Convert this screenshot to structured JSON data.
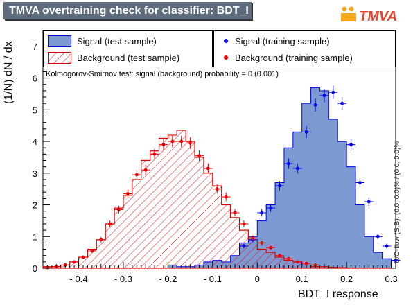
{
  "title": "TMVA overtraining check for classifier: BDT_I",
  "logo_text": "TMVA",
  "colors": {
    "signal_fill": "#7d99d1",
    "signal_line": "#0000ee",
    "background_hatch": "#ff0000",
    "background_line": "#dd0000",
    "title_bar": "#5d6b7d"
  },
  "legend": {
    "test": [
      {
        "label": "Signal (test sample)",
        "style": "filled-blue"
      },
      {
        "label": "Background (test sample)",
        "style": "hatched-red"
      }
    ],
    "training": [
      {
        "label": "Signal (training sample)",
        "style": "blue-marker"
      },
      {
        "label": "Background (training sample)",
        "style": "red-marker"
      }
    ]
  },
  "ks_text": "Kolmogorov-Smirnov test: signal (background) probability =     0 (0.001)",
  "overflow_text": "U/O-flow (S,B): (0.0, 0.0)% / (0.0, 0.0)%",
  "chart_data": {
    "type": "histogram",
    "xlabel": "BDT_I response",
    "ylabel": "(1/N) dN / dx",
    "xlim": [
      -0.48,
      0.31
    ],
    "ylim": [
      0,
      7.5
    ],
    "x_ticks": [
      -0.4,
      -0.3,
      -0.2,
      -0.1,
      0,
      0.1,
      0.2,
      0.3
    ],
    "x_tick_labels": [
      "- 0.4",
      "- 0.3",
      "- 0.2",
      "- 0.1",
      "0",
      "0.1",
      "0.2",
      "0.3"
    ],
    "y_ticks": [
      0,
      1,
      2,
      3,
      4,
      5,
      6,
      7
    ],
    "bin_edges": [
      -0.48,
      -0.46,
      -0.44,
      -0.42,
      -0.4,
      -0.38,
      -0.36,
      -0.34,
      -0.32,
      -0.3,
      -0.28,
      -0.26,
      -0.24,
      -0.22,
      -0.2,
      -0.18,
      -0.16,
      -0.14,
      -0.12,
      -0.1,
      -0.08,
      -0.06,
      -0.04,
      -0.02,
      0.0,
      0.02,
      0.04,
      0.06,
      0.08,
      0.1,
      0.12,
      0.14,
      0.16,
      0.18,
      0.2,
      0.22,
      0.24,
      0.26,
      0.28,
      0.3
    ],
    "series": [
      {
        "name": "Signal (test sample)",
        "kind": "filled-histogram",
        "values": [
          0,
          0,
          0,
          0,
          0,
          0,
          0,
          0,
          0,
          0,
          0,
          0,
          0,
          0,
          0.1,
          0.05,
          0.05,
          0.1,
          0.2,
          0.25,
          0.2,
          0.4,
          0.8,
          1.0,
          1.5,
          2.0,
          2.7,
          3.8,
          4.3,
          5.2,
          5.7,
          5.6,
          4.7,
          4.0,
          3.2,
          2.0,
          1.0,
          0.5,
          0.3
        ]
      },
      {
        "name": "Background (test sample)",
        "kind": "hatched-histogram",
        "values": [
          0.05,
          0.05,
          0.1,
          0.2,
          0.35,
          0.6,
          0.9,
          1.4,
          1.9,
          2.3,
          2.8,
          3.4,
          3.7,
          4.1,
          4.2,
          4.35,
          4.0,
          3.5,
          3.0,
          2.6,
          2.0,
          1.6,
          1.2,
          0.9,
          0.6,
          0.5,
          0.35,
          0.25,
          0.2,
          0.1,
          0.05,
          0.05,
          0.03,
          0.02,
          0.01,
          0,
          0,
          0,
          0
        ]
      },
      {
        "name": "Signal (training sample)",
        "kind": "markers",
        "points": [
          {
            "x": -0.03,
            "y": 0.7
          },
          {
            "x": -0.01,
            "y": 0.9
          },
          {
            "x": 0.01,
            "y": 1.75
          },
          {
            "x": 0.03,
            "y": 1.9
          },
          {
            "x": 0.05,
            "y": 2.6
          },
          {
            "x": 0.07,
            "y": 3.3
          },
          {
            "x": 0.09,
            "y": 3.15
          },
          {
            "x": 0.11,
            "y": 4.3
          },
          {
            "x": 0.13,
            "y": 5.15
          },
          {
            "x": 0.15,
            "y": 5.45
          },
          {
            "x": 0.17,
            "y": 5.55
          },
          {
            "x": 0.19,
            "y": 5.2
          },
          {
            "x": 0.21,
            "y": 3.9
          },
          {
            "x": 0.23,
            "y": 2.7
          },
          {
            "x": 0.25,
            "y": 2.1
          },
          {
            "x": 0.27,
            "y": 1.0
          },
          {
            "x": 0.29,
            "y": 0.7
          },
          {
            "x": 0.31,
            "y": 0.25
          }
        ]
      },
      {
        "name": "Background (training sample)",
        "kind": "markers",
        "points": [
          {
            "x": -0.47,
            "y": 0.02
          },
          {
            "x": -0.45,
            "y": 0.05
          },
          {
            "x": -0.43,
            "y": 0.1
          },
          {
            "x": -0.41,
            "y": 0.2
          },
          {
            "x": -0.39,
            "y": 0.35
          },
          {
            "x": -0.37,
            "y": 0.55
          },
          {
            "x": -0.35,
            "y": 0.9
          },
          {
            "x": -0.33,
            "y": 1.4
          },
          {
            "x": -0.31,
            "y": 1.85
          },
          {
            "x": -0.29,
            "y": 2.35
          },
          {
            "x": -0.27,
            "y": 2.95
          },
          {
            "x": -0.25,
            "y": 3.1
          },
          {
            "x": -0.23,
            "y": 3.6
          },
          {
            "x": -0.21,
            "y": 3.9
          },
          {
            "x": -0.19,
            "y": 4.0
          },
          {
            "x": -0.17,
            "y": 4.0
          },
          {
            "x": -0.15,
            "y": 3.95
          },
          {
            "x": -0.13,
            "y": 3.55
          },
          {
            "x": -0.11,
            "y": 3.15
          },
          {
            "x": -0.09,
            "y": 2.5
          },
          {
            "x": -0.07,
            "y": 2.25
          },
          {
            "x": -0.05,
            "y": 1.75
          },
          {
            "x": -0.03,
            "y": 1.4
          },
          {
            "x": -0.01,
            "y": 0.95
          },
          {
            "x": 0.01,
            "y": 0.8
          },
          {
            "x": 0.03,
            "y": 0.65
          },
          {
            "x": 0.05,
            "y": 0.4
          },
          {
            "x": 0.07,
            "y": 0.3
          },
          {
            "x": 0.09,
            "y": 0.2
          },
          {
            "x": 0.11,
            "y": 0.15
          },
          {
            "x": 0.13,
            "y": 0.1
          }
        ]
      }
    ]
  }
}
